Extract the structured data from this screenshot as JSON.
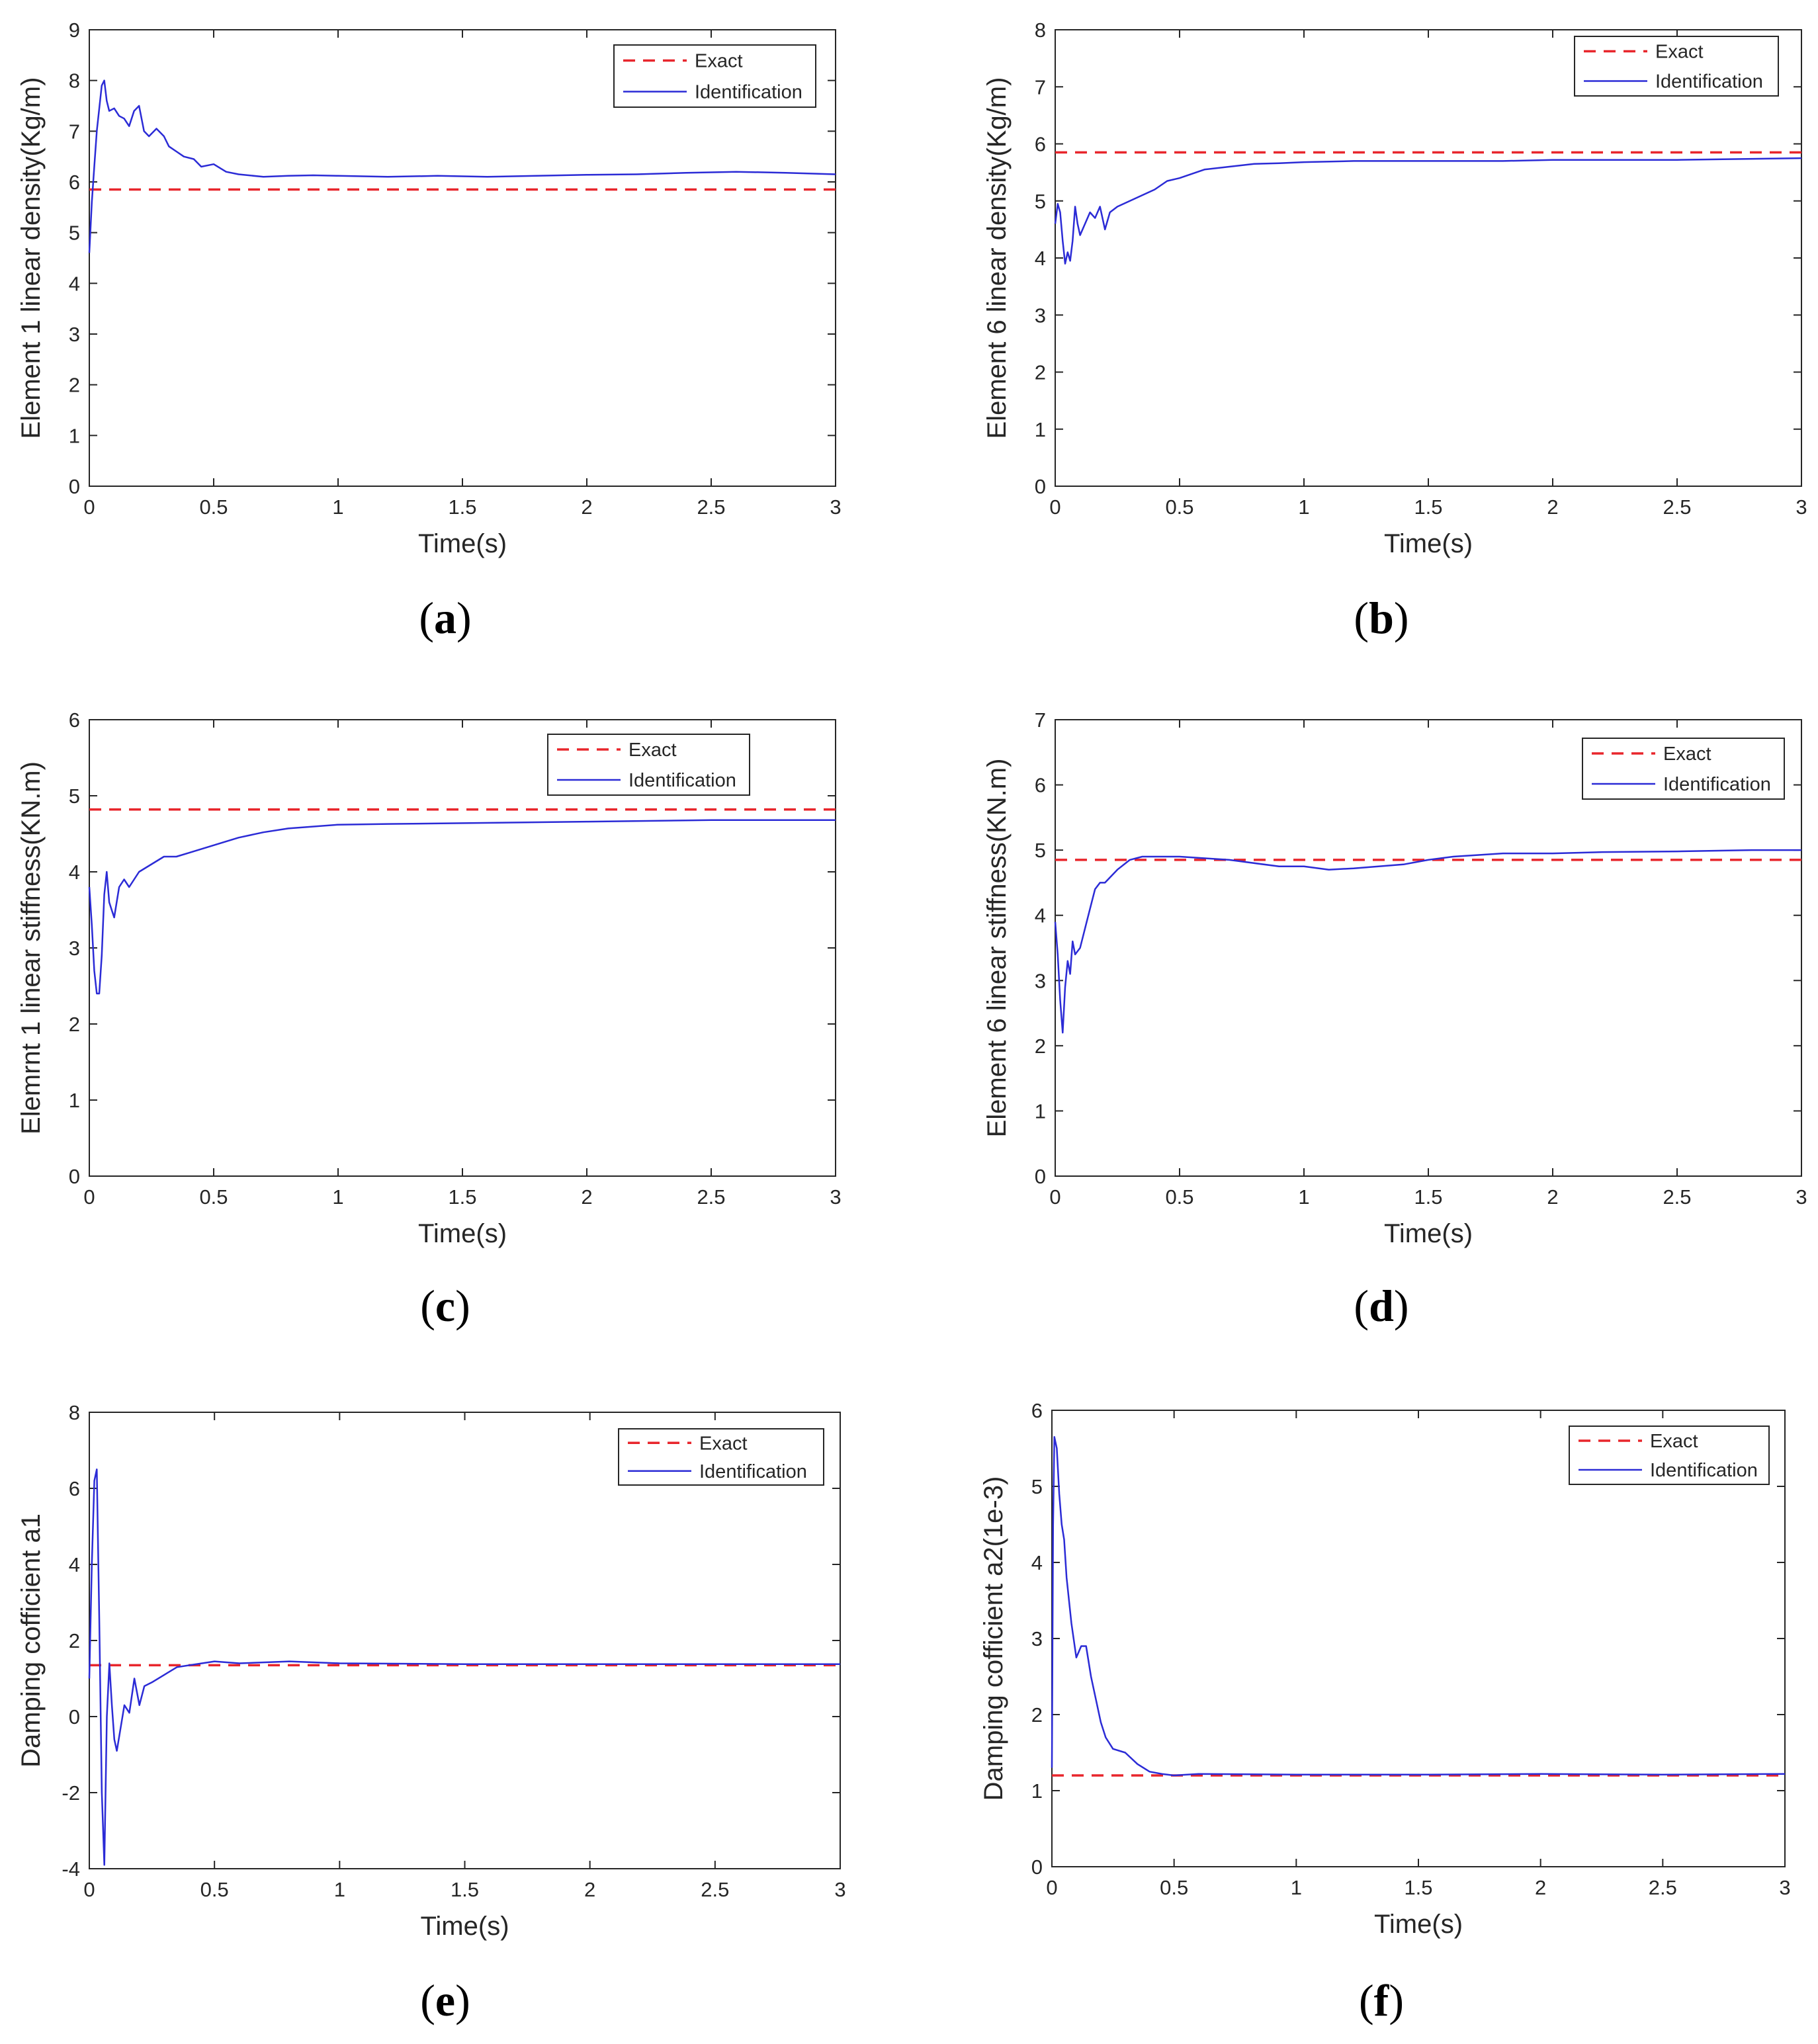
{
  "figure": {
    "colors": {
      "exact": "#e8262c",
      "identification": "#2b2bd6",
      "axis": "#262626",
      "background": "#ffffff"
    }
  },
  "chart_data": [
    {
      "type": "line",
      "panel_label": "a",
      "caption_open": "(",
      "caption_letter": "a",
      "caption_close": ")",
      "xlabel": "Time(s)",
      "ylabel": "Element 1 linear density(Kg/m)",
      "xlim": [
        0,
        3
      ],
      "ylim": [
        0,
        9
      ],
      "xticks": [
        0,
        0.5,
        1,
        1.5,
        2,
        2.5,
        3
      ],
      "xtick_labels": [
        "0",
        "0.5",
        "1",
        "1.5",
        "2",
        "2.5",
        "3"
      ],
      "yticks": [
        0,
        1,
        2,
        3,
        4,
        5,
        6,
        7,
        8,
        9
      ],
      "ytick_labels": [
        "0",
        "1",
        "2",
        "3",
        "4",
        "5",
        "6",
        "7",
        "8",
        "9"
      ],
      "legend": {
        "position": "top-right",
        "entries": [
          "Exact",
          "Identification"
        ]
      },
      "series": [
        {
          "name": "Exact",
          "style": "dashed",
          "x": [
            0,
            3
          ],
          "y": [
            5.85,
            5.85
          ]
        },
        {
          "name": "Identification",
          "style": "solid",
          "x": [
            0,
            0.01,
            0.02,
            0.03,
            0.05,
            0.06,
            0.07,
            0.08,
            0.1,
            0.12,
            0.14,
            0.16,
            0.18,
            0.2,
            0.22,
            0.24,
            0.27,
            0.3,
            0.32,
            0.35,
            0.38,
            0.42,
            0.45,
            0.5,
            0.55,
            0.6,
            0.7,
            0.8,
            0.9,
            1.0,
            1.2,
            1.4,
            1.6,
            1.8,
            2.0,
            2.2,
            2.4,
            2.6,
            2.8,
            3.0
          ],
          "y": [
            4.6,
            5.6,
            6.3,
            7.0,
            7.9,
            8.0,
            7.6,
            7.4,
            7.45,
            7.3,
            7.25,
            7.1,
            7.4,
            7.5,
            7.0,
            6.9,
            7.05,
            6.9,
            6.7,
            6.6,
            6.5,
            6.45,
            6.3,
            6.35,
            6.2,
            6.15,
            6.1,
            6.12,
            6.13,
            6.12,
            6.1,
            6.12,
            6.1,
            6.12,
            6.14,
            6.15,
            6.18,
            6.2,
            6.18,
            6.15
          ]
        }
      ]
    },
    {
      "type": "line",
      "panel_label": "b",
      "caption_open": "(",
      "caption_letter": "b",
      "caption_close": ")",
      "xlabel": "Time(s)",
      "ylabel": "Element 6 linear density(Kg/m)",
      "xlim": [
        0,
        3
      ],
      "ylim": [
        0,
        8
      ],
      "xticks": [
        0,
        0.5,
        1,
        1.5,
        2,
        2.5,
        3
      ],
      "xtick_labels": [
        "0",
        "0.5",
        "1",
        "1.5",
        "2",
        "2.5",
        "3"
      ],
      "yticks": [
        0,
        1,
        2,
        3,
        4,
        5,
        6,
        7,
        8
      ],
      "ytick_labels": [
        "0",
        "1",
        "2",
        "3",
        "4",
        "5",
        "6",
        "7",
        "8"
      ],
      "legend": {
        "position": "top-right",
        "entries": [
          "Exact",
          "Identification"
        ]
      },
      "series": [
        {
          "name": "Exact",
          "style": "dashed",
          "x": [
            0,
            3
          ],
          "y": [
            5.85,
            5.85
          ]
        },
        {
          "name": "Identification",
          "style": "solid",
          "x": [
            0,
            0.01,
            0.02,
            0.03,
            0.04,
            0.05,
            0.06,
            0.07,
            0.08,
            0.09,
            0.1,
            0.12,
            0.14,
            0.16,
            0.18,
            0.2,
            0.22,
            0.25,
            0.3,
            0.35,
            0.4,
            0.45,
            0.5,
            0.6,
            0.7,
            0.8,
            0.9,
            1.0,
            1.2,
            1.5,
            1.8,
            2.0,
            2.5,
            3.0
          ],
          "y": [
            4.6,
            4.95,
            4.8,
            4.3,
            3.9,
            4.1,
            3.95,
            4.3,
            4.9,
            4.6,
            4.4,
            4.6,
            4.8,
            4.7,
            4.9,
            4.5,
            4.8,
            4.9,
            5.0,
            5.1,
            5.2,
            5.35,
            5.4,
            5.55,
            5.6,
            5.65,
            5.66,
            5.68,
            5.7,
            5.7,
            5.7,
            5.72,
            5.72,
            5.75
          ]
        }
      ]
    },
    {
      "type": "line",
      "panel_label": "c",
      "caption_open": "(",
      "caption_letter": "c",
      "caption_close": ")",
      "xlabel": "Time(s)",
      "ylabel": "Elemrnt 1 linear stiffness(KN.m)",
      "xlim": [
        0,
        3
      ],
      "ylim": [
        0,
        6
      ],
      "xticks": [
        0,
        0.5,
        1,
        1.5,
        2,
        2.5,
        3
      ],
      "xtick_labels": [
        "0",
        "0.5",
        "1",
        "1.5",
        "2",
        "2.5",
        "3"
      ],
      "yticks": [
        0,
        1,
        2,
        3,
        4,
        5,
        6
      ],
      "ytick_labels": [
        "0",
        "1",
        "2",
        "3",
        "4",
        "5",
        "6"
      ],
      "legend": {
        "position": "top-right",
        "entries": [
          "Exact",
          "Identification"
        ]
      },
      "series": [
        {
          "name": "Exact",
          "style": "dashed",
          "x": [
            0,
            3
          ],
          "y": [
            4.82,
            4.82
          ]
        },
        {
          "name": "Identification",
          "style": "solid",
          "x": [
            0,
            0.01,
            0.02,
            0.03,
            0.04,
            0.05,
            0.06,
            0.07,
            0.08,
            0.09,
            0.1,
            0.12,
            0.14,
            0.16,
            0.2,
            0.25,
            0.3,
            0.35,
            0.4,
            0.5,
            0.6,
            0.7,
            0.8,
            1.0,
            1.2,
            1.5,
            2.0,
            2.5,
            3.0
          ],
          "y": [
            3.8,
            3.3,
            2.7,
            2.4,
            2.4,
            2.9,
            3.7,
            4.0,
            3.6,
            3.5,
            3.4,
            3.8,
            3.9,
            3.8,
            4.0,
            4.1,
            4.2,
            4.2,
            4.25,
            4.35,
            4.45,
            4.52,
            4.57,
            4.62,
            4.63,
            4.64,
            4.66,
            4.68,
            4.68
          ]
        }
      ]
    },
    {
      "type": "line",
      "panel_label": "d",
      "caption_open": "(",
      "caption_letter": "d",
      "caption_close": ")",
      "xlabel": "Time(s)",
      "ylabel": "Element 6 linear stiffness(KN.m)",
      "xlim": [
        0,
        3
      ],
      "ylim": [
        0,
        7
      ],
      "xticks": [
        0,
        0.5,
        1,
        1.5,
        2,
        2.5,
        3
      ],
      "xtick_labels": [
        "0",
        "0.5",
        "1",
        "1.5",
        "2",
        "2.5",
        "3"
      ],
      "yticks": [
        0,
        1,
        2,
        3,
        4,
        5,
        6,
        7
      ],
      "ytick_labels": [
        "0",
        "1",
        "2",
        "3",
        "4",
        "5",
        "6",
        "7"
      ],
      "legend": {
        "position": "top-right",
        "entries": [
          "Exact",
          "Identification"
        ]
      },
      "series": [
        {
          "name": "Exact",
          "style": "dashed",
          "x": [
            0,
            3
          ],
          "y": [
            4.85,
            4.85
          ]
        },
        {
          "name": "Identification",
          "style": "solid",
          "x": [
            0,
            0.01,
            0.02,
            0.03,
            0.04,
            0.05,
            0.06,
            0.07,
            0.08,
            0.1,
            0.12,
            0.14,
            0.16,
            0.18,
            0.2,
            0.25,
            0.3,
            0.35,
            0.4,
            0.5,
            0.7,
            0.9,
            1.0,
            1.1,
            1.2,
            1.3,
            1.4,
            1.5,
            1.6,
            1.8,
            2.0,
            2.2,
            2.5,
            2.8,
            3.0
          ],
          "y": [
            3.9,
            3.4,
            2.7,
            2.2,
            2.9,
            3.3,
            3.1,
            3.6,
            3.4,
            3.5,
            3.8,
            4.1,
            4.4,
            4.5,
            4.5,
            4.7,
            4.85,
            4.9,
            4.9,
            4.9,
            4.85,
            4.75,
            4.75,
            4.7,
            4.72,
            4.75,
            4.78,
            4.85,
            4.9,
            4.95,
            4.95,
            4.97,
            4.98,
            5.0,
            5.0
          ]
        }
      ]
    },
    {
      "type": "line",
      "panel_label": "e",
      "caption_open": "(",
      "caption_letter": "e",
      "caption_close": ")",
      "xlabel": "Time(s)",
      "ylabel": "Damping cofficient a1",
      "xlim": [
        0,
        3
      ],
      "ylim": [
        -4,
        8
      ],
      "xticks": [
        0,
        0.5,
        1,
        1.5,
        2,
        2.5,
        3
      ],
      "xtick_labels": [
        "0",
        "0.5",
        "1",
        "1.5",
        "2",
        "2.5",
        "3"
      ],
      "yticks": [
        -4,
        -2,
        0,
        2,
        4,
        6,
        8
      ],
      "ytick_labels": [
        "-4",
        "-2",
        "0",
        "2",
        "4",
        "6",
        "8"
      ],
      "legend": {
        "position": "top-right",
        "entries": [
          "Exact",
          "Identification"
        ]
      },
      "series": [
        {
          "name": "Exact",
          "style": "dashed",
          "x": [
            0,
            3
          ],
          "y": [
            1.35,
            1.35
          ]
        },
        {
          "name": "Identification",
          "style": "solid",
          "x": [
            0,
            0.01,
            0.02,
            0.03,
            0.04,
            0.05,
            0.06,
            0.07,
            0.08,
            0.09,
            0.1,
            0.11,
            0.12,
            0.14,
            0.16,
            0.18,
            0.2,
            0.22,
            0.25,
            0.3,
            0.35,
            0.4,
            0.5,
            0.6,
            0.8,
            1.0,
            1.5,
            2.0,
            2.5,
            3.0
          ],
          "y": [
            1.0,
            4.0,
            6.2,
            6.5,
            2.5,
            -2.0,
            -3.9,
            0.0,
            1.4,
            0.3,
            -0.6,
            -0.9,
            -0.5,
            0.3,
            0.1,
            1.0,
            0.3,
            0.8,
            0.9,
            1.1,
            1.3,
            1.35,
            1.45,
            1.4,
            1.45,
            1.4,
            1.38,
            1.38,
            1.38,
            1.38
          ]
        }
      ]
    },
    {
      "type": "line",
      "panel_label": "f",
      "caption_open": "(",
      "caption_letter": "f",
      "caption_close": ")",
      "xlabel": "Time(s)",
      "ylabel": "Damping cofficient a2(1e-3)",
      "xlim": [
        0,
        3
      ],
      "ylim": [
        0,
        6
      ],
      "xticks": [
        0,
        0.5,
        1,
        1.5,
        2,
        2.5,
        3
      ],
      "xtick_labels": [
        "0",
        "0.5",
        "1",
        "1.5",
        "2",
        "2.5",
        "3"
      ],
      "yticks": [
        0,
        1,
        2,
        3,
        4,
        5,
        6
      ],
      "ytick_labels": [
        "0",
        "1",
        "2",
        "3",
        "4",
        "5",
        "6"
      ],
      "legend": {
        "position": "top-right",
        "entries": [
          "Exact",
          "Identification"
        ]
      },
      "series": [
        {
          "name": "Exact",
          "style": "dashed",
          "x": [
            0,
            3
          ],
          "y": [
            1.2,
            1.2
          ]
        },
        {
          "name": "Identification",
          "style": "solid",
          "x": [
            0,
            0.005,
            0.01,
            0.02,
            0.03,
            0.04,
            0.05,
            0.06,
            0.08,
            0.1,
            0.12,
            0.14,
            0.16,
            0.18,
            0.2,
            0.22,
            0.25,
            0.3,
            0.35,
            0.4,
            0.45,
            0.5,
            0.6,
            1.0,
            1.5,
            2.0,
            2.5,
            3.0
          ],
          "y": [
            1.3,
            4.5,
            5.65,
            5.5,
            4.9,
            4.5,
            4.3,
            3.8,
            3.2,
            2.75,
            2.9,
            2.9,
            2.5,
            2.2,
            1.9,
            1.7,
            1.55,
            1.5,
            1.35,
            1.25,
            1.22,
            1.2,
            1.22,
            1.21,
            1.21,
            1.22,
            1.21,
            1.22
          ]
        }
      ]
    }
  ]
}
